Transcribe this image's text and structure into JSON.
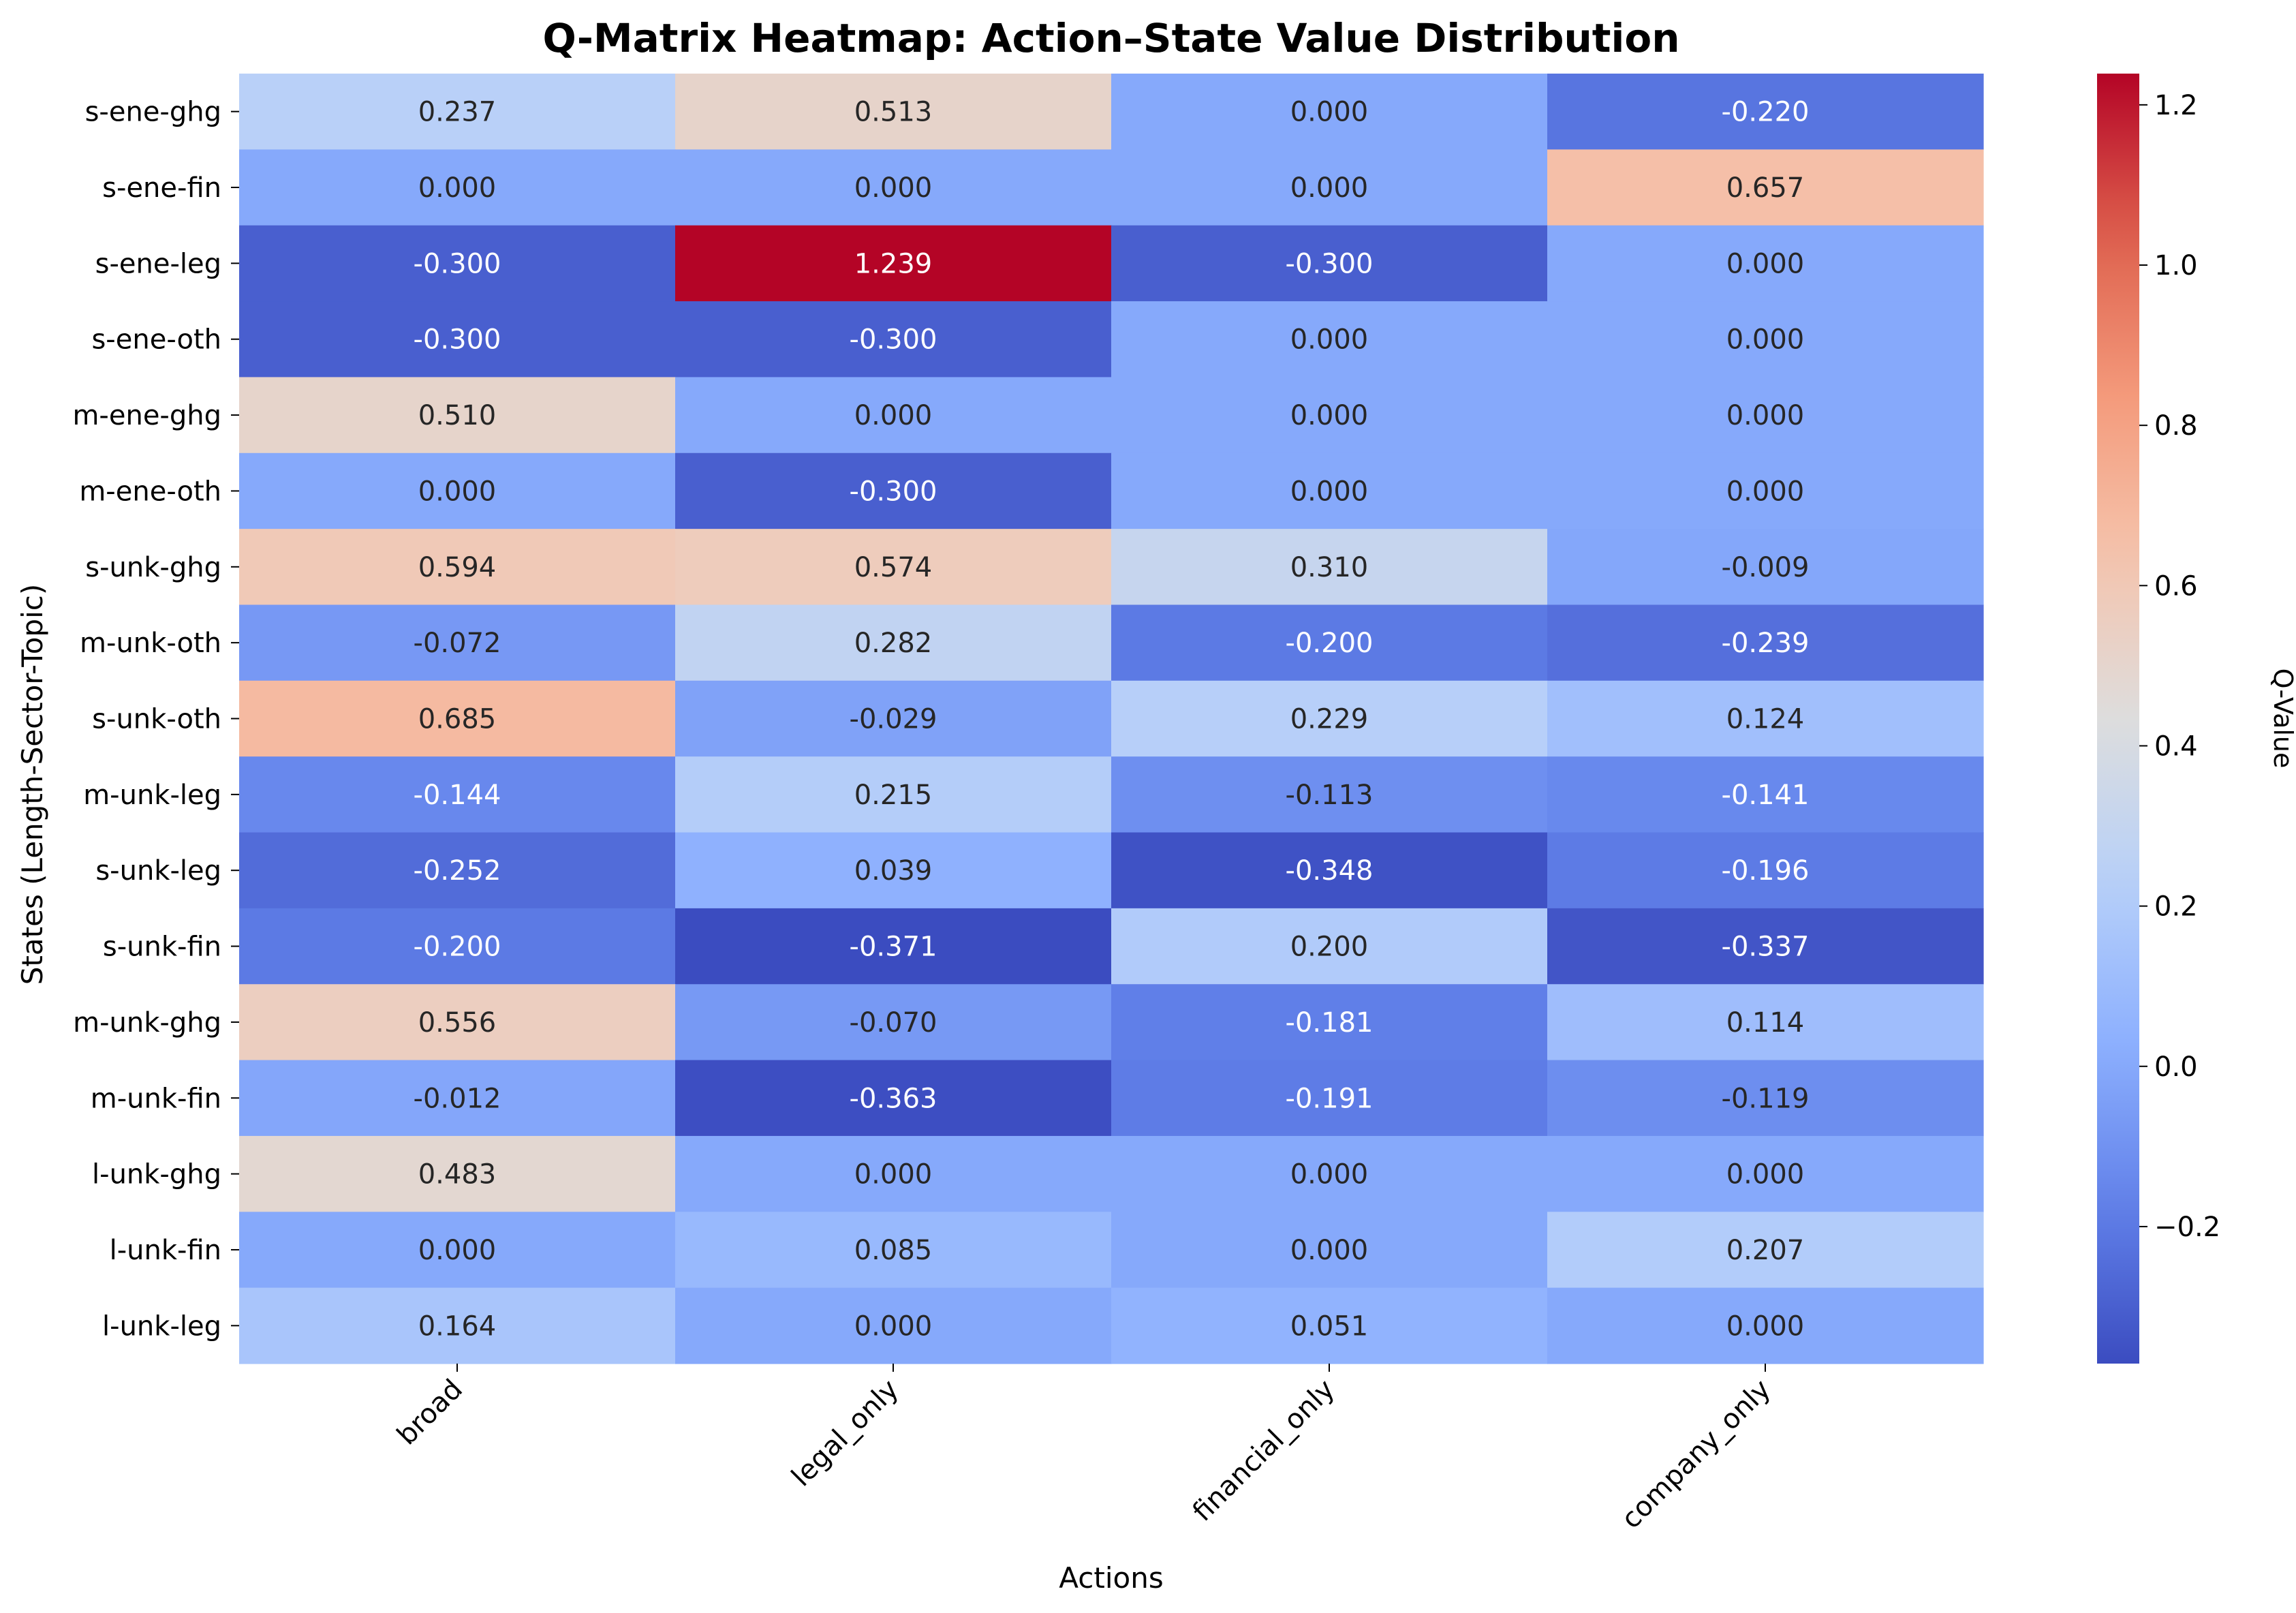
{
  "chart_data": {
    "type": "heatmap",
    "title": "Q-Matrix Heatmap: Action–State Value Distribution",
    "xlabel": "Actions",
    "ylabel": "States (Length-Sector-Topic)",
    "columns": [
      "broad",
      "legal_only",
      "financial_only",
      "company_only"
    ],
    "rows": [
      "s-ene-ghg",
      "s-ene-fin",
      "s-ene-leg",
      "s-ene-oth",
      "m-ene-ghg",
      "m-ene-oth",
      "s-unk-ghg",
      "m-unk-oth",
      "s-unk-oth",
      "m-unk-leg",
      "s-unk-leg",
      "s-unk-fin",
      "m-unk-ghg",
      "m-unk-fin",
      "l-unk-ghg",
      "l-unk-fin",
      "l-unk-leg"
    ],
    "values": [
      [
        0.237,
        0.513,
        0.0,
        -0.22
      ],
      [
        0.0,
        0.0,
        0.0,
        0.657
      ],
      [
        -0.3,
        1.239,
        -0.3,
        0.0
      ],
      [
        -0.3,
        -0.3,
        0.0,
        0.0
      ],
      [
        0.51,
        0.0,
        0.0,
        0.0
      ],
      [
        0.0,
        -0.3,
        0.0,
        0.0
      ],
      [
        0.594,
        0.574,
        0.31,
        -0.009
      ],
      [
        -0.072,
        0.282,
        -0.2,
        -0.239
      ],
      [
        0.685,
        -0.029,
        0.229,
        0.124
      ],
      [
        -0.144,
        0.215,
        -0.113,
        -0.141
      ],
      [
        -0.252,
        0.039,
        -0.348,
        -0.196
      ],
      [
        -0.2,
        -0.371,
        0.2,
        -0.337
      ],
      [
        0.556,
        -0.07,
        -0.181,
        0.114
      ],
      [
        -0.012,
        -0.363,
        -0.191,
        -0.119
      ],
      [
        0.483,
        0.0,
        0.0,
        0.0
      ],
      [
        0.0,
        0.085,
        0.0,
        0.207
      ],
      [
        0.164,
        0.0,
        0.051,
        0.0
      ]
    ],
    "value_range": [
      -0.371,
      1.239
    ],
    "colormap": "coolwarm",
    "colorbar": {
      "label": "Q-Value",
      "ticks": [
        -0.2,
        0.0,
        0.2,
        0.4,
        0.6,
        0.8,
        1.0,
        1.2
      ],
      "tick_labels": [
        "−0.2",
        "0.0",
        "0.2",
        "0.4",
        "0.6",
        "0.8",
        "1.0",
        "1.2"
      ]
    },
    "annotation_format": "3 decimals",
    "grid": false,
    "legend": "colorbar right"
  }
}
